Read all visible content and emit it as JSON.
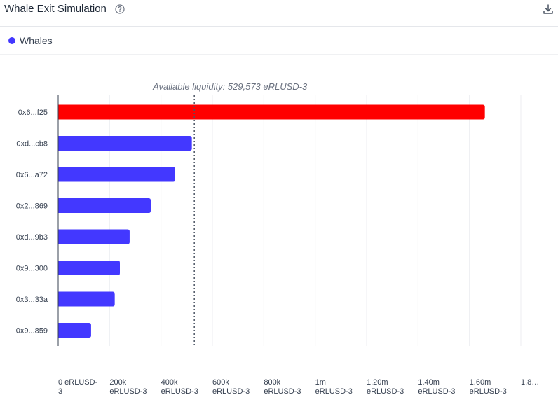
{
  "header": {
    "title": "Whale Exit Simulation"
  },
  "icons": {
    "help": "help-circle-icon",
    "download": "download-icon"
  },
  "legend": {
    "label": "Whales",
    "color": "#4338ff"
  },
  "chart_data": {
    "type": "bar",
    "orientation": "horizontal",
    "title": "Whale Exit Simulation",
    "annotation": "Available liquidity: 529,573 eRLUSD-3",
    "liquidity_value": 529573,
    "categories": [
      "0x6...f25",
      "0xd...cb8",
      "0x6...a72",
      "0x2...869",
      "0xd...9b3",
      "0x9...300",
      "0x3...33a",
      "0x9...859"
    ],
    "values": [
      1660000,
      520000,
      455000,
      360000,
      278000,
      240000,
      220000,
      128000
    ],
    "highlight_color": "#ff0000",
    "bar_color": "#4338ff",
    "x_ticks": [
      {
        "value": 0,
        "line1": "0 eRLUSD-",
        "line2": "3"
      },
      {
        "value": 200000,
        "line1": "200k",
        "line2": "eRLUSD-3"
      },
      {
        "value": 400000,
        "line1": "400k",
        "line2": "eRLUSD-3"
      },
      {
        "value": 600000,
        "line1": "600k",
        "line2": "eRLUSD-3"
      },
      {
        "value": 800000,
        "line1": "800k",
        "line2": "eRLUSD-3"
      },
      {
        "value": 1000000,
        "line1": "1m",
        "line2": "eRLUSD-3"
      },
      {
        "value": 1200000,
        "line1": "1.20m",
        "line2": "eRLUSD-3"
      },
      {
        "value": 1400000,
        "line1": "1.40m",
        "line2": "eRLUSD-3"
      },
      {
        "value": 1600000,
        "line1": "1.60m",
        "line2": "eRLUSD-3"
      },
      {
        "value": 1800000,
        "line1": "1.8…",
        "line2": ""
      }
    ],
    "xlim": [
      0,
      1800000
    ],
    "xlabel": "",
    "ylabel": ""
  }
}
